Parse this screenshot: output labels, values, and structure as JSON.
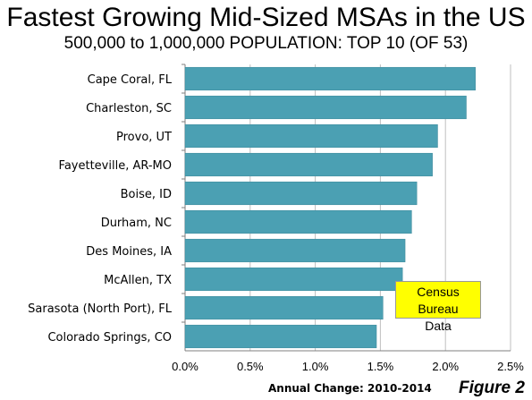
{
  "title": "Fastest Growing Mid-Sized MSAs in the US",
  "subtitle": "500,000 to 1,000,000 POPULATION: TOP 10 (OF 53)",
  "figure_label": "Figure 2",
  "note": {
    "line1": "Census Bureau",
    "line2": "Data"
  },
  "colors": {
    "bar": "#4BA0B3",
    "bar_edge": "#3A8698",
    "grid": "#BFBFBF"
  },
  "chart_data": {
    "type": "bar",
    "orientation": "horizontal",
    "title": "Fastest Growing Mid-Sized MSAs in the US",
    "subtitle": "500,000 to 1,000,000 POPULATION: TOP 10 (OF 53)",
    "xlabel": "Annual Change: 2010-2014",
    "ylabel": "",
    "categories": [
      "Cape Coral, FL",
      "Charleston, SC",
      "Provo, UT",
      "Fayetteville, AR-MO",
      "Boise, ID",
      "Durham, NC",
      "Des Moines, IA",
      "McAllen, TX",
      "Sarasota (North Port), FL",
      "Colorado Springs, CO"
    ],
    "values": [
      2.23,
      2.16,
      1.94,
      1.9,
      1.78,
      1.74,
      1.69,
      1.67,
      1.52,
      1.47
    ],
    "xlim": [
      0,
      2.5
    ],
    "xticks": [
      "0.0%",
      "0.5%",
      "1.0%",
      "1.5%",
      "2.0%",
      "2.5%"
    ],
    "grid": true,
    "annotations": [
      "Census Bureau Data"
    ]
  }
}
